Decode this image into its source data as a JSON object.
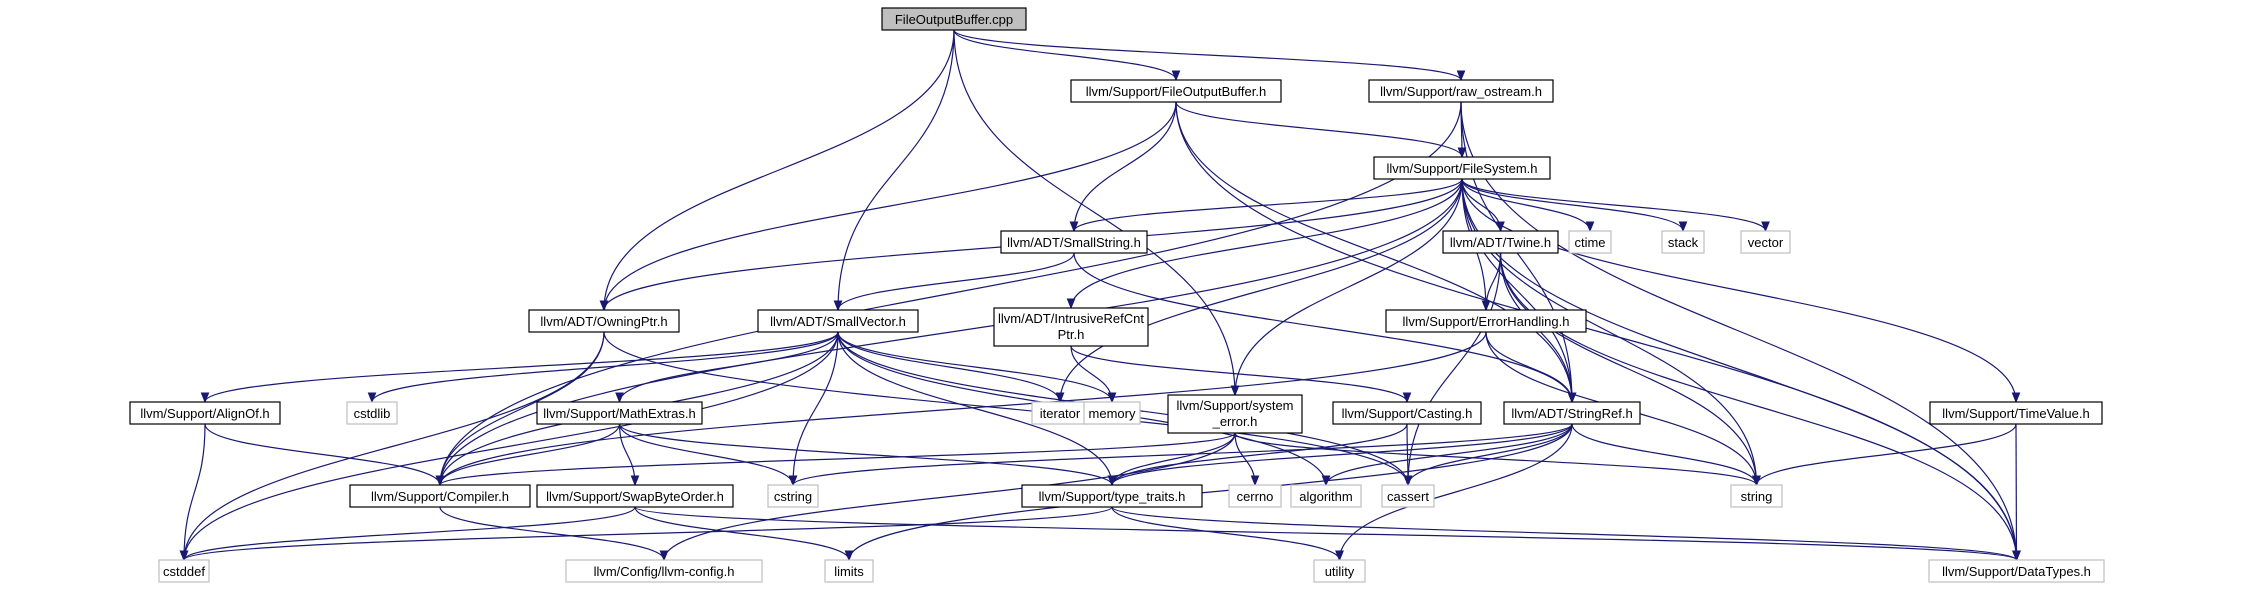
{
  "graph": {
    "nodes": [
      {
        "id": "root",
        "label": "FileOutputBuffer.cpp",
        "kind": "root"
      },
      {
        "id": "fob",
        "label": "llvm/Support/FileOutputBuffer.h",
        "kind": "header"
      },
      {
        "id": "raw",
        "label": "llvm/Support/raw_ostream.h",
        "kind": "header"
      },
      {
        "id": "fs",
        "label": "llvm/Support/FileSystem.h",
        "kind": "header"
      },
      {
        "id": "smallstring",
        "label": "llvm/ADT/SmallString.h",
        "kind": "header"
      },
      {
        "id": "ctime",
        "label": "ctime",
        "kind": "sys"
      },
      {
        "id": "stack",
        "label": "stack",
        "kind": "sys"
      },
      {
        "id": "vector",
        "label": "vector",
        "kind": "sys"
      },
      {
        "id": "twine",
        "label": "llvm/ADT/Twine.h",
        "kind": "header"
      },
      {
        "id": "owningptr",
        "label": "llvm/ADT/OwningPtr.h",
        "kind": "header"
      },
      {
        "id": "smallvector",
        "label": "llvm/ADT/SmallVector.h",
        "kind": "header"
      },
      {
        "id": "irc",
        "label": "llvm/ADT/IntrusiveRefCnt",
        "label2": "Ptr.h",
        "kind": "header"
      },
      {
        "id": "errorhandling",
        "label": "llvm/Support/ErrorHandling.h",
        "kind": "header"
      },
      {
        "id": "alignof",
        "label": "llvm/Support/AlignOf.h",
        "kind": "header"
      },
      {
        "id": "cstdlib",
        "label": "cstdlib",
        "kind": "sys"
      },
      {
        "id": "mathextras",
        "label": "llvm/Support/MathExtras.h",
        "kind": "header"
      },
      {
        "id": "iterator",
        "label": "iterator",
        "kind": "sys"
      },
      {
        "id": "memory",
        "label": "memory",
        "kind": "sys"
      },
      {
        "id": "syserror",
        "label": "llvm/Support/system",
        "label2": "_error.h",
        "kind": "header"
      },
      {
        "id": "casting",
        "label": "llvm/Support/Casting.h",
        "kind": "header"
      },
      {
        "id": "stringref",
        "label": "llvm/ADT/StringRef.h",
        "kind": "header"
      },
      {
        "id": "timevalue",
        "label": "llvm/Support/TimeValue.h",
        "kind": "header"
      },
      {
        "id": "compiler",
        "label": "llvm/Support/Compiler.h",
        "kind": "header"
      },
      {
        "id": "swapbyte",
        "label": "llvm/Support/SwapByteOrder.h",
        "kind": "header"
      },
      {
        "id": "cstring",
        "label": "cstring",
        "kind": "sys"
      },
      {
        "id": "typetraits",
        "label": "llvm/Support/type_traits.h",
        "kind": "header"
      },
      {
        "id": "cerrno",
        "label": "cerrno",
        "kind": "sys"
      },
      {
        "id": "algorithm",
        "label": "algorithm",
        "kind": "sys"
      },
      {
        "id": "cassert",
        "label": "cassert",
        "kind": "sys"
      },
      {
        "id": "string",
        "label": "string",
        "kind": "sys"
      },
      {
        "id": "cstddef",
        "label": "cstddef",
        "kind": "sys"
      },
      {
        "id": "llvmconfig",
        "label": "llvm/Config/llvm-config.h",
        "kind": "sys"
      },
      {
        "id": "limits",
        "label": "limits",
        "kind": "sys"
      },
      {
        "id": "utility",
        "label": "utility",
        "kind": "sys"
      },
      {
        "id": "datatypes",
        "label": "llvm/Support/DataTypes.h",
        "kind": "sys"
      }
    ],
    "edges": [
      [
        "root",
        "fob"
      ],
      [
        "root",
        "raw"
      ],
      [
        "root",
        "owningptr"
      ],
      [
        "root",
        "smallvector"
      ],
      [
        "root",
        "syserror"
      ],
      [
        "fob",
        "fs"
      ],
      [
        "fob",
        "smallstring"
      ],
      [
        "fob",
        "owningptr"
      ],
      [
        "fob",
        "stringref"
      ],
      [
        "fob",
        "datatypes"
      ],
      [
        "raw",
        "fs"
      ],
      [
        "raw",
        "stringref"
      ],
      [
        "raw",
        "datatypes"
      ],
      [
        "raw",
        "compiler"
      ],
      [
        "fs",
        "smallstring"
      ],
      [
        "fs",
        "ctime"
      ],
      [
        "fs",
        "stack"
      ],
      [
        "fs",
        "vector"
      ],
      [
        "fs",
        "twine"
      ],
      [
        "fs",
        "owningptr"
      ],
      [
        "fs",
        "irc"
      ],
      [
        "fs",
        "errorhandling"
      ],
      [
        "fs",
        "syserror"
      ],
      [
        "fs",
        "stringref"
      ],
      [
        "fs",
        "timevalue"
      ],
      [
        "fs",
        "iterator"
      ],
      [
        "fs",
        "string"
      ],
      [
        "fs",
        "datatypes"
      ],
      [
        "fs",
        "compiler"
      ],
      [
        "smallstring",
        "smallvector"
      ],
      [
        "smallstring",
        "stringref"
      ],
      [
        "twine",
        "errorhandling"
      ],
      [
        "twine",
        "stringref"
      ],
      [
        "twine",
        "cassert"
      ],
      [
        "twine",
        "string"
      ],
      [
        "twine",
        "datatypes"
      ],
      [
        "owningptr",
        "compiler"
      ],
      [
        "owningptr",
        "cassert"
      ],
      [
        "owningptr",
        "cstddef"
      ],
      [
        "smallvector",
        "alignof"
      ],
      [
        "smallvector",
        "cstdlib"
      ],
      [
        "smallvector",
        "mathextras"
      ],
      [
        "smallvector",
        "iterator"
      ],
      [
        "smallvector",
        "memory"
      ],
      [
        "smallvector",
        "compiler"
      ],
      [
        "smallvector",
        "typetraits"
      ],
      [
        "smallvector",
        "cstring"
      ],
      [
        "smallvector",
        "algorithm"
      ],
      [
        "smallvector",
        "cassert"
      ],
      [
        "smallvector",
        "cstddef"
      ],
      [
        "irc",
        "memory"
      ],
      [
        "irc",
        "casting"
      ],
      [
        "errorhandling",
        "compiler"
      ],
      [
        "errorhandling",
        "stringref"
      ],
      [
        "errorhandling",
        "string"
      ],
      [
        "alignof",
        "compiler"
      ],
      [
        "alignof",
        "cstddef"
      ],
      [
        "mathextras",
        "compiler"
      ],
      [
        "mathextras",
        "swapbyte"
      ],
      [
        "mathextras",
        "cstring"
      ],
      [
        "mathextras",
        "typetraits"
      ],
      [
        "syserror",
        "compiler"
      ],
      [
        "syserror",
        "cerrno"
      ],
      [
        "syserror",
        "typetraits"
      ],
      [
        "syserror",
        "string"
      ],
      [
        "syserror",
        "llvmconfig"
      ],
      [
        "casting",
        "typetraits"
      ],
      [
        "casting",
        "cassert"
      ],
      [
        "stringref",
        "typetraits"
      ],
      [
        "stringref",
        "algorithm"
      ],
      [
        "stringref",
        "cassert"
      ],
      [
        "stringref",
        "cstring"
      ],
      [
        "stringref",
        "limits"
      ],
      [
        "stringref",
        "string"
      ],
      [
        "stringref",
        "utility"
      ],
      [
        "timevalue",
        "datatypes"
      ],
      [
        "timevalue",
        "string"
      ],
      [
        "compiler",
        "llvmconfig"
      ],
      [
        "swapbyte",
        "datatypes"
      ],
      [
        "swapbyte",
        "cstddef"
      ],
      [
        "swapbyte",
        "limits"
      ],
      [
        "typetraits",
        "datatypes"
      ],
      [
        "typetraits",
        "utility"
      ],
      [
        "typetraits",
        "cstddef"
      ]
    ]
  }
}
